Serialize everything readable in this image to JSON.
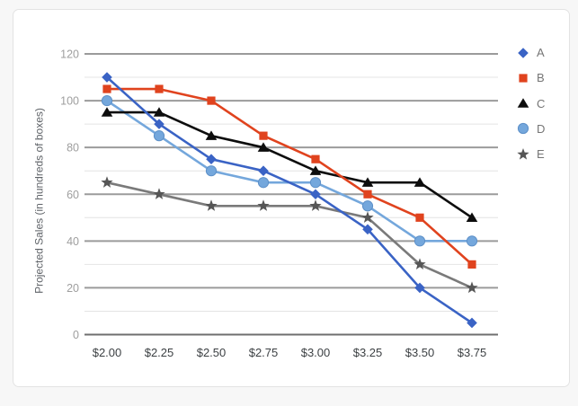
{
  "window": {
    "background": "#f7f7f7",
    "card_background": "#ffffff",
    "card_border": "#e3e3e3"
  },
  "style": {
    "grid_major": "#9b9b9b",
    "grid_minor": "#e4e4e4",
    "axis_line": "#6f6f6f",
    "y_tick_color": "#9e9e9e",
    "x_tick_color": "#3c4043",
    "axis_title_color": "#5f6368",
    "legend_label_color": "#757575"
  },
  "chart_data": {
    "type": "line",
    "title": "",
    "xlabel": "",
    "ylabel": "Projected Sales (in hundreds of boxes)",
    "categories": [
      "$2.00",
      "$2.25",
      "$2.50",
      "$2.75",
      "$3.00",
      "$3.25",
      "$3.50",
      "$3.75"
    ],
    "series": [
      {
        "name": "A",
        "marker": "diamond",
        "color": "#3a63c5",
        "values": [
          110,
          90,
          75,
          70,
          60,
          45,
          20,
          5
        ]
      },
      {
        "name": "B",
        "marker": "square",
        "color": "#e0431e",
        "values": [
          105,
          105,
          100,
          85,
          75,
          60,
          50,
          30
        ]
      },
      {
        "name": "C",
        "marker": "triangle",
        "color": "#0d0d0d",
        "values": [
          95,
          95,
          85,
          80,
          70,
          65,
          65,
          50
        ]
      },
      {
        "name": "D",
        "marker": "circle",
        "color": "#74a7dc",
        "marker_stroke": "#5d90c8",
        "values": [
          100,
          85,
          70,
          65,
          65,
          55,
          40,
          40
        ]
      },
      {
        "name": "E",
        "marker": "star",
        "color": "#7a7a7a",
        "marker_color": "#565656",
        "values": [
          65,
          60,
          55,
          55,
          55,
          50,
          30,
          20
        ]
      }
    ],
    "ylim": [
      0,
      120
    ],
    "y_major_ticks": [
      0,
      20,
      40,
      60,
      80,
      100,
      120
    ],
    "y_minor_step": 10,
    "grid": true,
    "legend_position": "right"
  }
}
